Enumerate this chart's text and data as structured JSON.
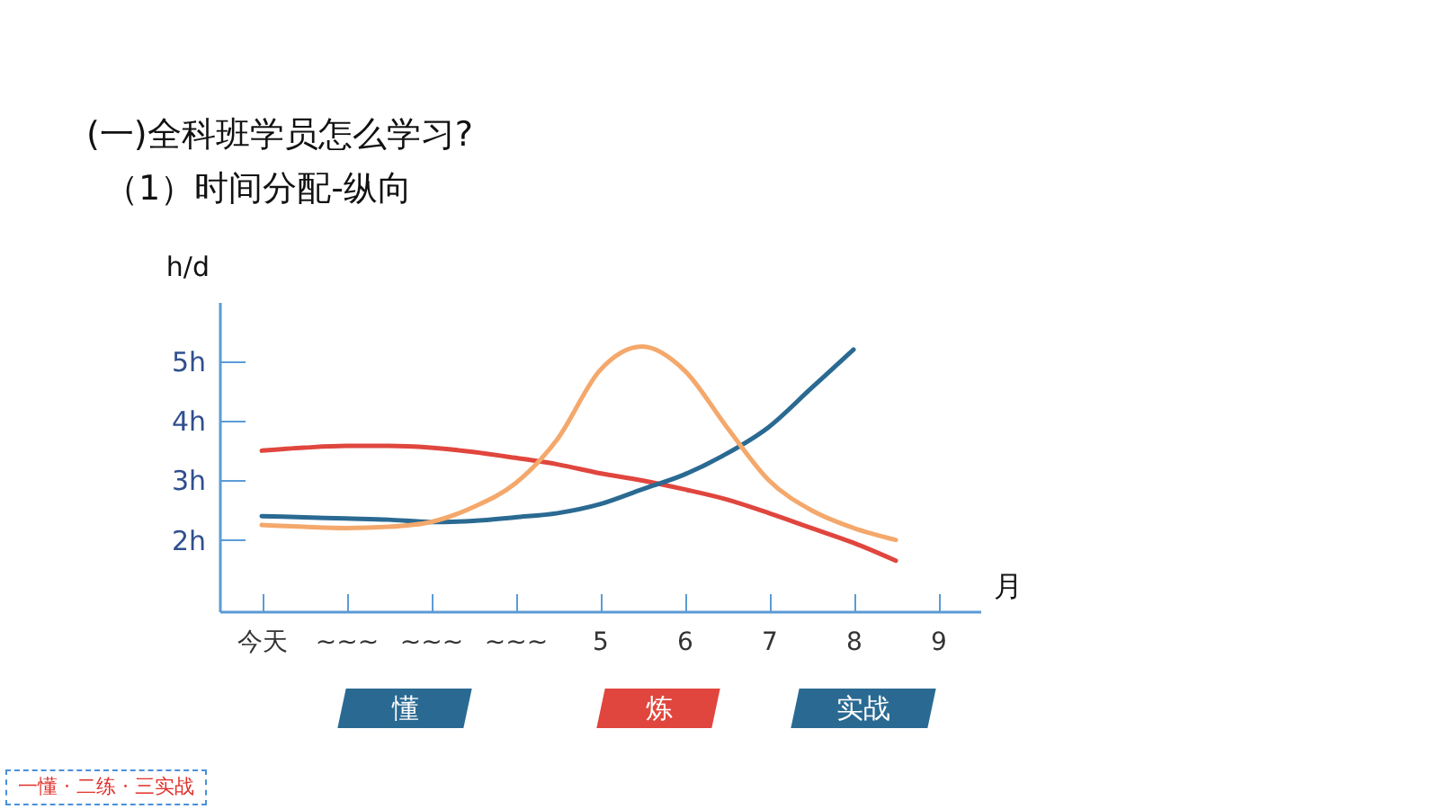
{
  "chart_data": {
    "type": "line",
    "title": "(一)全科班学员怎么学习?",
    "subtitle": "（1）时间分配-纵向",
    "xlabel": "月",
    "ylabel": "h/d",
    "categories": [
      "今天",
      null,
      "~~~",
      null,
      "~~~",
      null,
      "~~~",
      null,
      "5",
      null,
      "6",
      null,
      "7",
      null,
      "8",
      null,
      "9"
    ],
    "ylim": [
      0.8,
      6
    ],
    "yticks": [
      {
        "value": 2,
        "label": "2h"
      },
      {
        "value": 3,
        "label": "3h"
      },
      {
        "value": 4,
        "label": "4h"
      },
      {
        "value": 5,
        "label": "5h"
      }
    ],
    "grid": false,
    "legend": false,
    "series": [
      {
        "color": "#e0463e",
        "values": [
          3.5,
          3.55,
          3.58,
          3.58,
          3.55,
          3.48,
          3.38,
          3.27,
          3.12,
          3.0,
          2.85,
          2.68,
          2.45,
          2.2,
          1.95,
          1.65,
          null
        ]
      },
      {
        "color": "#2a6a92",
        "values": [
          2.4,
          2.38,
          2.36,
          2.34,
          2.3,
          2.32,
          2.38,
          2.45,
          2.6,
          2.85,
          3.1,
          3.45,
          3.9,
          4.55,
          5.2,
          null,
          null
        ]
      },
      {
        "color": "#f4a86b",
        "values": [
          2.25,
          2.22,
          2.2,
          2.22,
          2.3,
          2.55,
          2.95,
          3.7,
          4.85,
          5.25,
          4.85,
          3.9,
          3.0,
          2.5,
          2.2,
          2.0,
          null
        ]
      }
    ],
    "annotations": [
      "懂",
      "炼",
      "实战",
      "一懂 · 二练 · 三实战"
    ]
  }
}
